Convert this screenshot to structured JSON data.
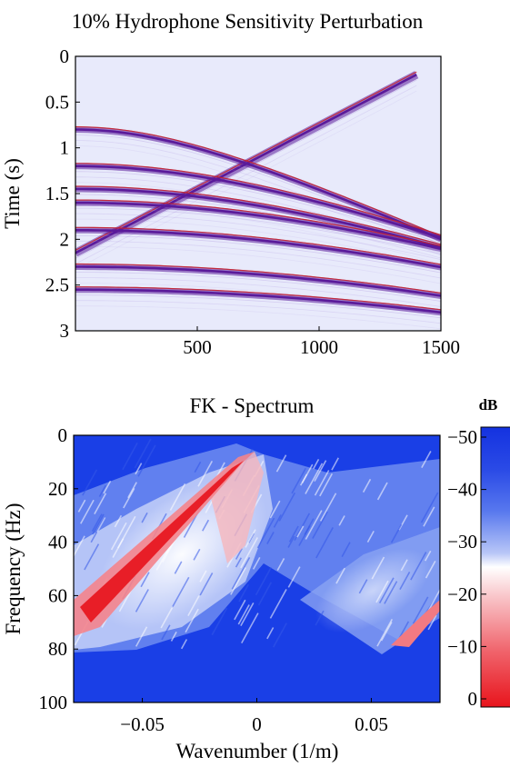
{
  "chart_data": [
    {
      "type": "heatmap",
      "title": "10% Hydrophone Sensitivity Perturbation",
      "xlabel": "",
      "ylabel": "Time (s)",
      "xlim": [
        0,
        1500
      ],
      "ylim": [
        3,
        0
      ],
      "x_ticks": [
        "500",
        "1000",
        "1500"
      ],
      "y_ticks": [
        "0",
        "0.5",
        "1",
        "1.5",
        "2",
        "2.5",
        "3"
      ],
      "events": [
        {
          "kind": "direct",
          "x": [
            0,
            1400
          ],
          "t": [
            2.15,
            0.2
          ]
        },
        {
          "kind": "hyperbola",
          "t0": 0.8,
          "v": 820
        },
        {
          "kind": "hyperbola",
          "t0": 1.2,
          "v": 950
        },
        {
          "kind": "hyperbola",
          "t0": 1.45,
          "v": 1000
        },
        {
          "kind": "hyperbola",
          "t0": 1.6,
          "v": 1100
        },
        {
          "kind": "hyperbola",
          "t0": 1.9,
          "v": 1150
        },
        {
          "kind": "hyperbola",
          "t0": 2.3,
          "v": 1200
        },
        {
          "kind": "hyperbola",
          "t0": 2.55,
          "v": 1300
        }
      ],
      "colors": {
        "background": "#e8eafb",
        "event": "#5a1a9a",
        "event_edge": "#c8242c"
      }
    },
    {
      "type": "heatmap",
      "title": "FK - Spectrum",
      "xlabel": "Wavenumber (1/m)",
      "ylabel": "Frequency (Hz)",
      "xlim": [
        -0.08,
        0.08
      ],
      "ylim": [
        100,
        0
      ],
      "x_ticks": [
        "−0.05",
        "0",
        "0.05"
      ],
      "y_ticks": [
        "0",
        "20",
        "40",
        "60",
        "80",
        "100"
      ],
      "colorbar": {
        "unit": "dB",
        "ticks": [
          "−50",
          "−40",
          "−30",
          "−20",
          "−10",
          "0"
        ],
        "range": [
          -50,
          0
        ]
      },
      "colors": {
        "low": "#1a3fe6",
        "mid": "#ffffff",
        "high": "#e8141c"
      }
    }
  ]
}
